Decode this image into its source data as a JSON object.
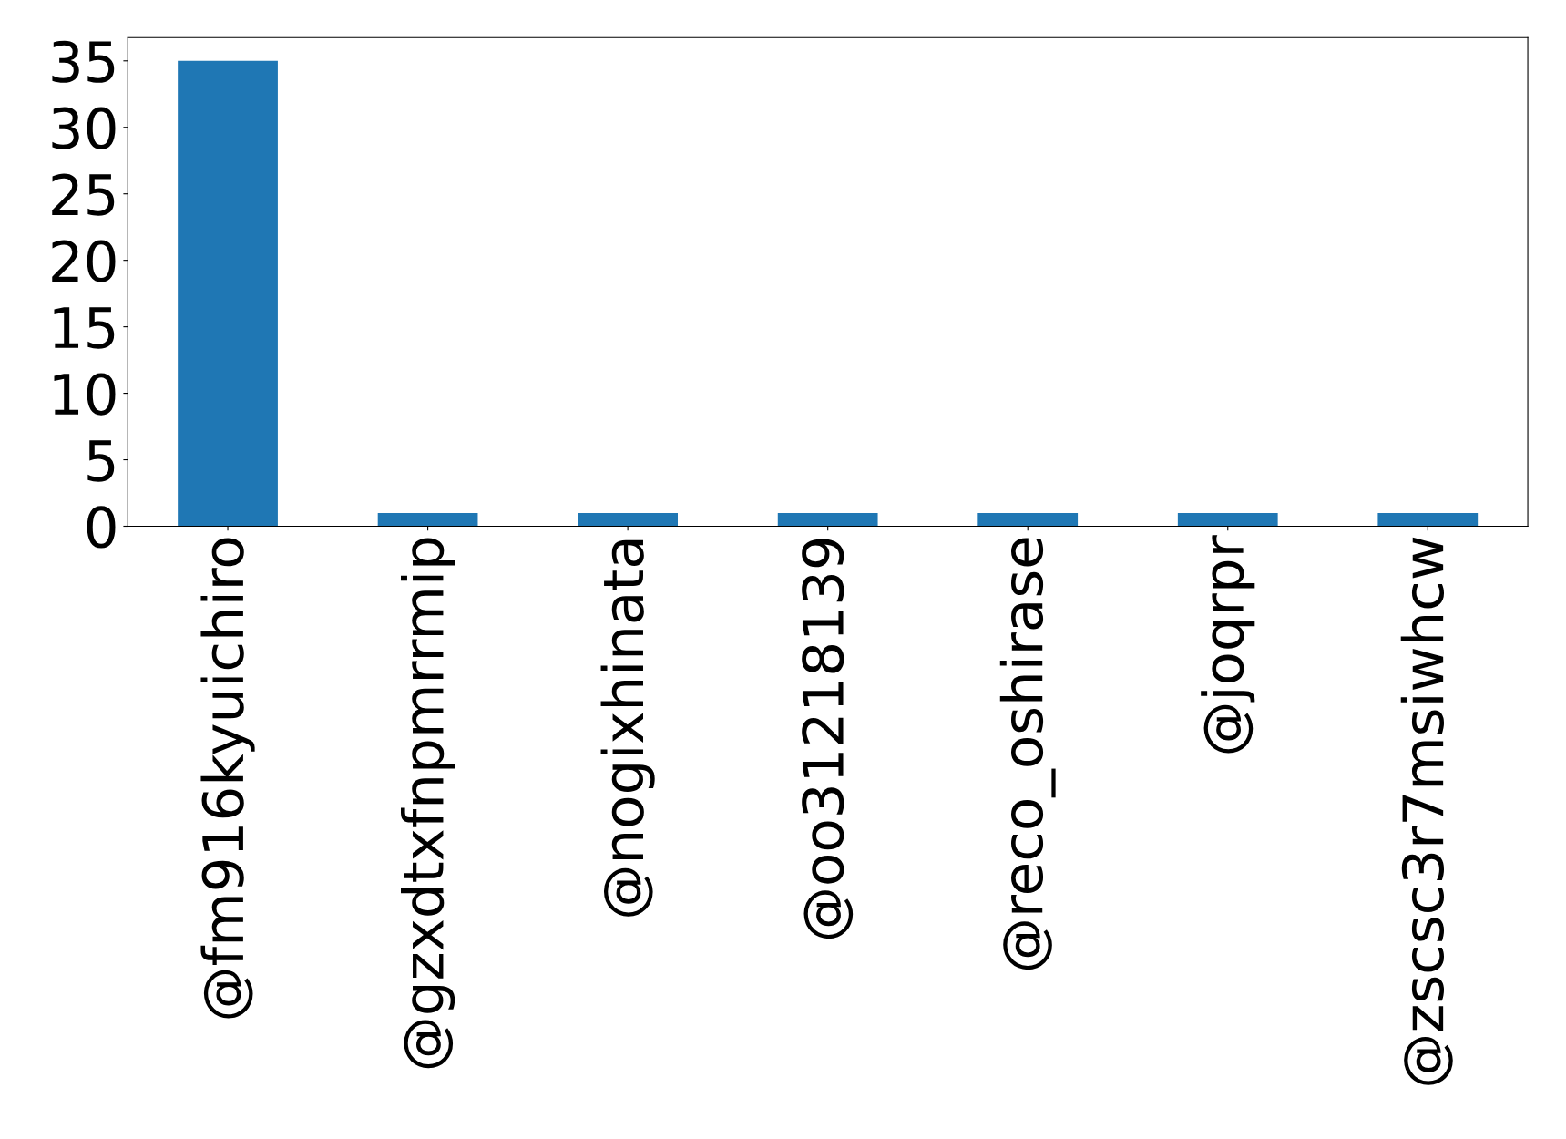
{
  "chart_data": {
    "type": "bar",
    "categories": [
      "@fm916kyuichiro",
      "@gzxdtxfnpmrrmip",
      "@nogixhinata",
      "@oo31218139",
      "@reco_oshirase",
      "@joqrpr",
      "@zscsc3r7msiwhcw"
    ],
    "values": [
      35,
      1,
      1,
      1,
      1,
      1,
      1
    ],
    "color": "#1f77b4",
    "ylim": [
      0,
      36.75
    ],
    "yticks": [
      0,
      5,
      10,
      15,
      20,
      25,
      30,
      35
    ],
    "grid": false,
    "legend": false
  }
}
